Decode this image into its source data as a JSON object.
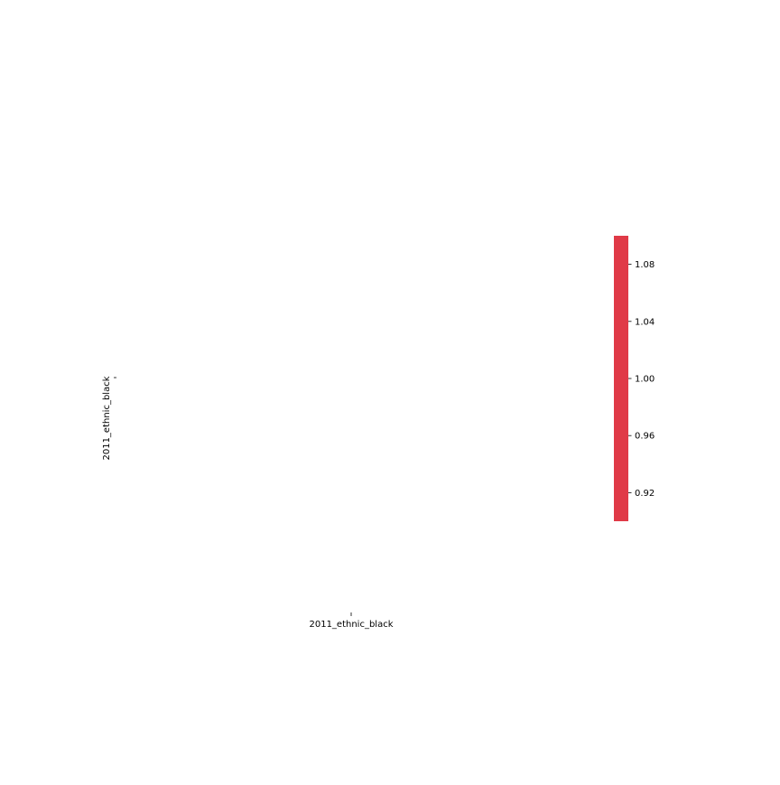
{
  "chart_data": {
    "type": "heatmap",
    "row_labels": [
      "2011_ethnic_black"
    ],
    "column_labels": [
      "2011_ethnic_black"
    ],
    "values": [
      [
        null
      ]
    ],
    "colorbar": {
      "color": "#e03a47",
      "range": [
        0.9,
        1.1
      ],
      "ticks": [
        0.92,
        0.96,
        1.0,
        1.04,
        1.08
      ],
      "tick_labels": [
        "0.92",
        "0.96",
        "1.00",
        "1.04",
        "1.08"
      ]
    }
  }
}
